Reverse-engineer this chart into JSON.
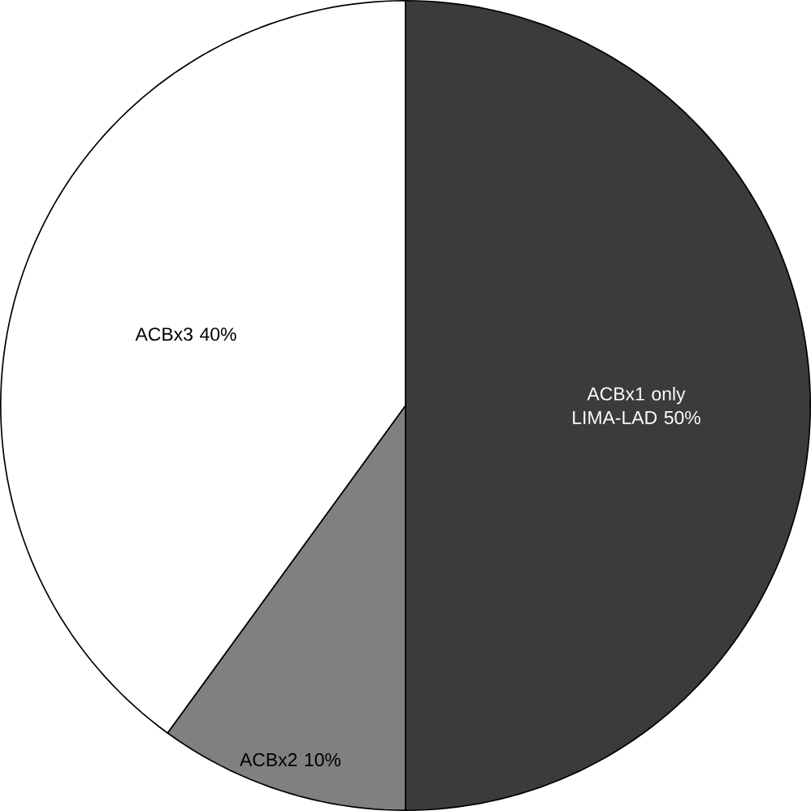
{
  "chart_data": {
    "type": "pie",
    "categories": [
      "ACBx1 only LIMA-LAD",
      "ACBx2",
      "ACBx3"
    ],
    "values": [
      50,
      10,
      40
    ],
    "value_labels": [
      "50%",
      "10%",
      "40%"
    ],
    "colors": [
      "#3b3b3b",
      "#808080",
      "#ffffff"
    ]
  }
}
